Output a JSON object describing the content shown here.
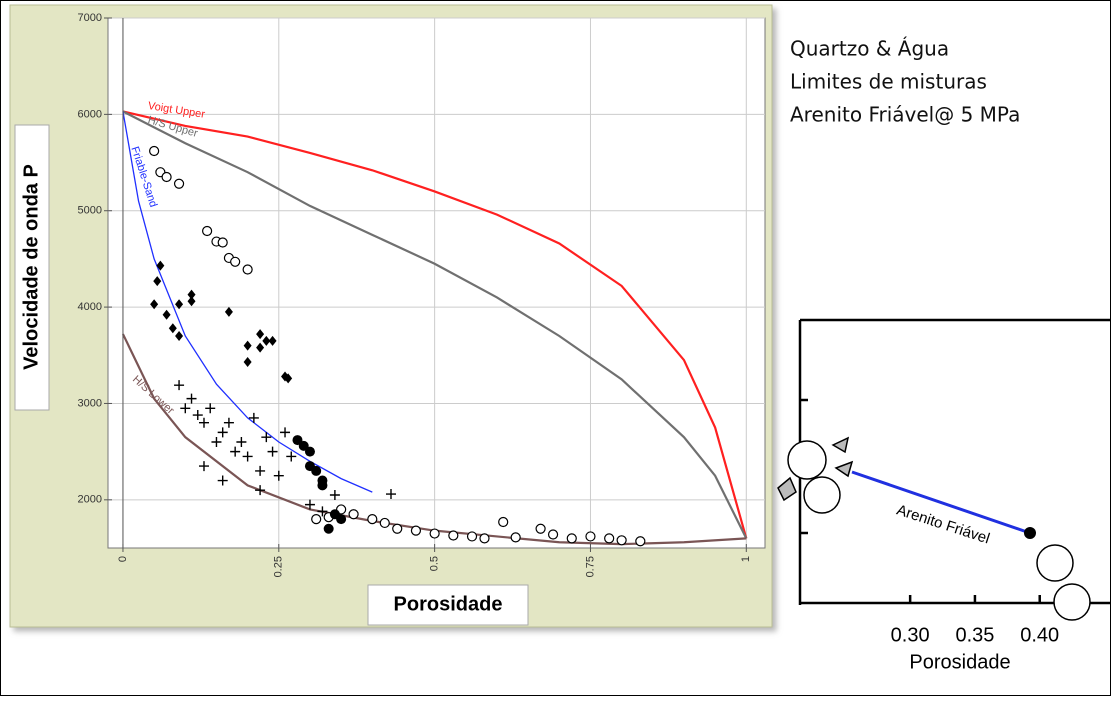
{
  "chart_data": {
    "type": "line",
    "xlabel": "Porosidade",
    "ylabel": "Velocidade de onda P",
    "annotations": [
      "Quartzo & Água",
      "Limites de misturas",
      "Arenito Friável@ 5 MPa"
    ],
    "xlim": [
      -0.024,
      1.03
    ],
    "ylim": [
      1500,
      7000
    ],
    "xticks": [
      0,
      0.25,
      0.5,
      0.75,
      1
    ],
    "yticks": [
      2000,
      3000,
      4000,
      5000,
      6000,
      7000
    ],
    "grid": true,
    "curves": [
      {
        "name": "Voigt Upper",
        "color": "#ff2020",
        "x": [
          0,
          0.1,
          0.2,
          0.3,
          0.4,
          0.5,
          0.6,
          0.7,
          0.8,
          0.9,
          0.95,
          1
        ],
        "values": [
          6030,
          5880,
          5770,
          5600,
          5420,
          5200,
          4960,
          4660,
          4220,
          3450,
          2750,
          1600
        ]
      },
      {
        "name": "H/S Upper",
        "color": "#707070",
        "x": [
          0,
          0.1,
          0.2,
          0.3,
          0.4,
          0.5,
          0.6,
          0.7,
          0.8,
          0.9,
          0.95,
          1
        ],
        "values": [
          6030,
          5700,
          5400,
          5050,
          4750,
          4450,
          4100,
          3700,
          3250,
          2650,
          2250,
          1600
        ]
      },
      {
        "name": "Friable-Sand",
        "color": "#2030ff",
        "x": [
          0,
          0.025,
          0.05,
          0.1,
          0.15,
          0.2,
          0.25,
          0.3,
          0.35,
          0.4
        ],
        "values": [
          6030,
          5100,
          4500,
          3700,
          3200,
          2850,
          2600,
          2400,
          2220,
          2080
        ]
      },
      {
        "name": "H/S Lower",
        "color": "#7a5555",
        "x": [
          0,
          0.05,
          0.1,
          0.2,
          0.3,
          0.4,
          0.5,
          0.6,
          0.7,
          0.8,
          0.9,
          1
        ],
        "values": [
          3720,
          3050,
          2650,
          2150,
          1900,
          1780,
          1680,
          1620,
          1560,
          1540,
          1560,
          1600
        ]
      }
    ],
    "points": [
      {
        "marker": "circle-open",
        "color": "#000000",
        "x": [
          0.05,
          0.06,
          0.07,
          0.09,
          0.135,
          0.15,
          0.16,
          0.17,
          0.18,
          0.2,
          0.31,
          0.33,
          0.35,
          0.37,
          0.4,
          0.42,
          0.44,
          0.47,
          0.5,
          0.53,
          0.56,
          0.58,
          0.61,
          0.63,
          0.67,
          0.69,
          0.72,
          0.75,
          0.78,
          0.8,
          0.83
        ],
        "values": [
          5620,
          5400,
          5350,
          5280,
          4790,
          4680,
          4670,
          4510,
          4470,
          4390,
          1800,
          1820,
          1900,
          1850,
          1800,
          1760,
          1700,
          1680,
          1650,
          1630,
          1620,
          1600,
          1770,
          1610,
          1700,
          1640,
          1600,
          1620,
          1600,
          1580,
          1570
        ]
      },
      {
        "marker": "diamond",
        "color": "#000000",
        "x": [
          0.06,
          0.055,
          0.05,
          0.07,
          0.08,
          0.09,
          0.09,
          0.11,
          0.11,
          0.17,
          0.2,
          0.22,
          0.23,
          0.24,
          0.2,
          0.22,
          0.26,
          0.265
        ],
        "values": [
          4430,
          4270,
          4030,
          3920,
          3780,
          3700,
          4030,
          4060,
          4130,
          3950,
          3600,
          3720,
          3650,
          3650,
          3430,
          3580,
          3280,
          3260
        ]
      },
      {
        "marker": "plus",
        "color": "#000000",
        "x": [
          0.09,
          0.1,
          0.11,
          0.12,
          0.13,
          0.14,
          0.15,
          0.16,
          0.17,
          0.18,
          0.19,
          0.2,
          0.21,
          0.22,
          0.23,
          0.24,
          0.25,
          0.26,
          0.27,
          0.22,
          0.3,
          0.32,
          0.34,
          0.43,
          0.13,
          0.16
        ],
        "values": [
          3190,
          2950,
          3050,
          2880,
          2800,
          2950,
          2600,
          2700,
          2800,
          2500,
          2600,
          2450,
          2850,
          2300,
          2650,
          2500,
          2250,
          2700,
          2450,
          2100,
          1950,
          1880,
          2050,
          2060,
          2350,
          2200
        ]
      },
      {
        "marker": "circle-filled",
        "color": "#000000",
        "x": [
          0.28,
          0.29,
          0.3,
          0.3,
          0.31,
          0.32,
          0.32,
          0.34,
          0.33,
          0.35
        ],
        "values": [
          2620,
          2560,
          2500,
          2350,
          2300,
          2200,
          2150,
          1850,
          1700,
          1800
        ]
      }
    ]
  },
  "inset": {
    "xlim": [
      0.215,
      0.455
    ],
    "xticks": [
      {
        "value": 0.3,
        "label": "0.30"
      },
      {
        "value": 0.35,
        "label": "0.35"
      },
      {
        "value": 0.4,
        "label": "0.40"
      }
    ],
    "xlabel": "Porosidade",
    "line_label": "Arenito Friável"
  }
}
